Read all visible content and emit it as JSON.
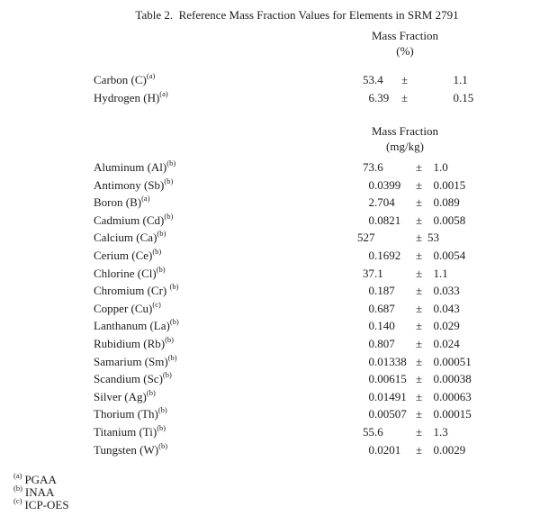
{
  "pm_symbol": "±",
  "title": "Table 2.  Reference Mass Fraction Values for Elements in SRM 2791",
  "sections": [
    {
      "header": {
        "line1": "Mass Fraction",
        "line2": "(%)"
      },
      "rows": [
        {
          "element": "Carbon (C)",
          "note": "(a)",
          "value": "53.4",
          "uncertainty": "1.1",
          "val_int": "53",
          "val_frac": ".4",
          "unc_int": "1",
          "unc_frac": ".1"
        },
        {
          "element": "Hydrogen (H)",
          "note": "(a)",
          "value": "6.39",
          "uncertainty": "0.15",
          "val_int": "6",
          "val_frac": ".39",
          "unc_int": "0",
          "unc_frac": ".15"
        }
      ]
    },
    {
      "header": {
        "line1": "Mass Fraction",
        "line2": "(mg/kg)"
      },
      "rows": [
        {
          "element": "Aluminum (Al)",
          "note": "(b)",
          "value": "73.6",
          "uncertainty": "1.0",
          "val_int": "73",
          "val_frac": ".6",
          "unc_int": "1",
          "unc_frac": ".0"
        },
        {
          "element": "Antimony (Sb)",
          "note": "(b)",
          "value": "0.0399",
          "uncertainty": "0.0015",
          "val_int": "0",
          "val_frac": ".0399",
          "unc_int": "0",
          "unc_frac": ".0015"
        },
        {
          "element": "Boron (B)",
          "note": "(a)",
          "value": "2.704",
          "uncertainty": "0.089",
          "val_int": "2",
          "val_frac": ".704",
          "unc_int": "0",
          "unc_frac": ".089"
        },
        {
          "element": "Cadmium (Cd)",
          "note": "(b)",
          "value": "0.0821",
          "uncertainty": "0.0058",
          "val_int": "0",
          "val_frac": ".0821",
          "unc_int": "0",
          "unc_frac": ".0058"
        },
        {
          "element": "Calcium (Ca)",
          "note": "(b)",
          "value": "527",
          "uncertainty": "53",
          "val_int": "527",
          "val_frac": "",
          "unc_int": "53",
          "unc_frac": ""
        },
        {
          "element": "Cerium (Ce)",
          "note": "(b)",
          "value": "0.1692",
          "uncertainty": "0.0054",
          "val_int": "0",
          "val_frac": ".1692",
          "unc_int": "0",
          "unc_frac": ".0054"
        },
        {
          "element": "Chlorine (Cl)",
          "note": "(b)",
          "value": "37.1",
          "uncertainty": "1.1",
          "val_int": "37",
          "val_frac": ".1",
          "unc_int": "1",
          "unc_frac": ".1"
        },
        {
          "element": "Chromium (Cr) ",
          "note": "(b)",
          "value": "0.187",
          "uncertainty": "0.033",
          "val_int": "0",
          "val_frac": ".187",
          "unc_int": "0",
          "unc_frac": ".033"
        },
        {
          "element": "Copper (Cu)",
          "note": "(c)",
          "value": "0.687",
          "uncertainty": "0.043",
          "val_int": "0",
          "val_frac": ".687",
          "unc_int": "0",
          "unc_frac": ".043"
        },
        {
          "element": "Lanthanum (La)",
          "note": "(b)",
          "value": "0.140",
          "uncertainty": "0.029",
          "val_int": "0",
          "val_frac": ".140",
          "unc_int": "0",
          "unc_frac": ".029"
        },
        {
          "element": "Rubidium (Rb)",
          "note": "(b)",
          "value": "0.807",
          "uncertainty": "0.024",
          "val_int": "0",
          "val_frac": ".807",
          "unc_int": "0",
          "unc_frac": ".024"
        },
        {
          "element": "Samarium (Sm)",
          "note": "(b)",
          "value": "0.01338",
          "uncertainty": "0.00051",
          "val_int": "0",
          "val_frac": ".01338",
          "unc_int": "0",
          "unc_frac": ".00051"
        },
        {
          "element": "Scandium (Sc)",
          "note": "(b)",
          "value": "0.00615",
          "uncertainty": "0.00038",
          "val_int": "0",
          "val_frac": ".00615",
          "unc_int": "0",
          "unc_frac": ".00038"
        },
        {
          "element": "Silver (Ag)",
          "note": "(b)",
          "value": "0.01491",
          "uncertainty": "0.00063",
          "val_int": "0",
          "val_frac": ".01491",
          "unc_int": "0",
          "unc_frac": ".00063"
        },
        {
          "element": "Thorium (Th)",
          "note": "(b)",
          "value": "0.00507",
          "uncertainty": "0.00015",
          "val_int": "0",
          "val_frac": ".00507",
          "unc_int": "0",
          "unc_frac": ".00015"
        },
        {
          "element": "Titanium (Ti)",
          "note": "(b)",
          "value": "55.6",
          "uncertainty": "1.3",
          "val_int": "55",
          "val_frac": ".6",
          "unc_int": "1",
          "unc_frac": ".3"
        },
        {
          "element": "Tungsten (W)",
          "note": "(b)",
          "value": "0.0201",
          "uncertainty": "0.0029",
          "val_int": "0",
          "val_frac": ".0201",
          "unc_int": "0",
          "unc_frac": ".0029"
        }
      ]
    }
  ],
  "footnotes": [
    {
      "marker": "(a)",
      "label": "PGAA"
    },
    {
      "marker": "(b)",
      "label": "INAA"
    },
    {
      "marker": "(c)",
      "label": "ICP-OES"
    }
  ]
}
